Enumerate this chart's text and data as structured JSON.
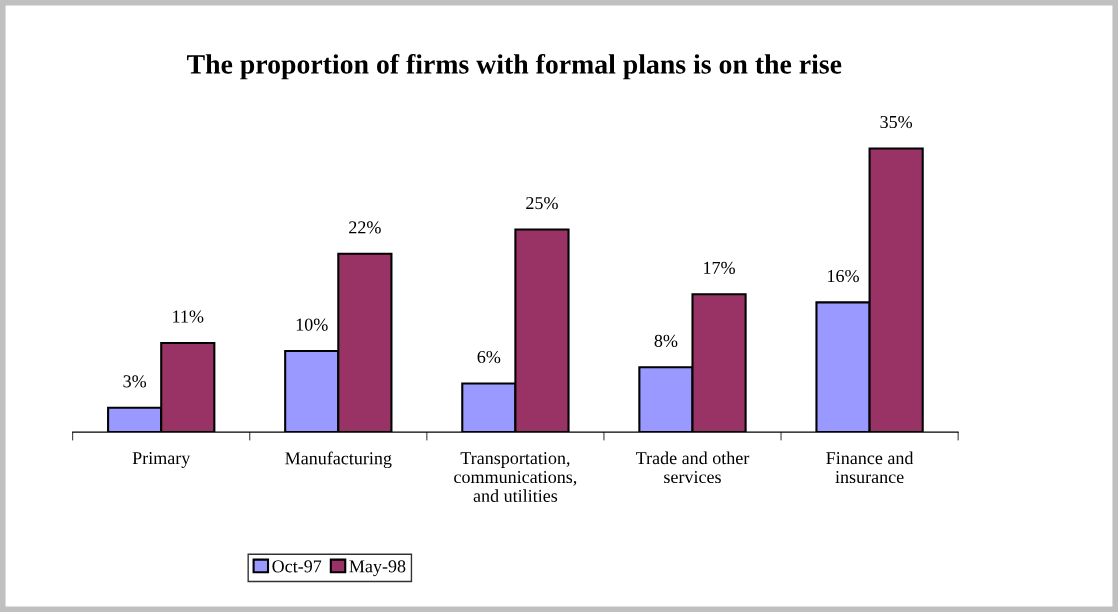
{
  "chart_data": {
    "type": "bar",
    "title": "The proportion of firms with formal plans is on the rise",
    "categories": [
      "Primary",
      "Manufacturing",
      "Transportation,\ncommunications,\nand utilities",
      "Trade and other\nservices",
      "Finance and\ninsurance"
    ],
    "series": [
      {
        "name": "Oct-97",
        "color": "#9999ff",
        "values": [
          3,
          10,
          6,
          8,
          16
        ],
        "value_labels": [
          "3%",
          "10%",
          "6%",
          "8%",
          "16%"
        ]
      },
      {
        "name": "May-98",
        "color": "#993366",
        "values": [
          11,
          22,
          25,
          17,
          35
        ],
        "value_labels": [
          "11%",
          "22%",
          "25%",
          "17%",
          "35%"
        ]
      }
    ],
    "legend": "bottom",
    "grid": false
  }
}
